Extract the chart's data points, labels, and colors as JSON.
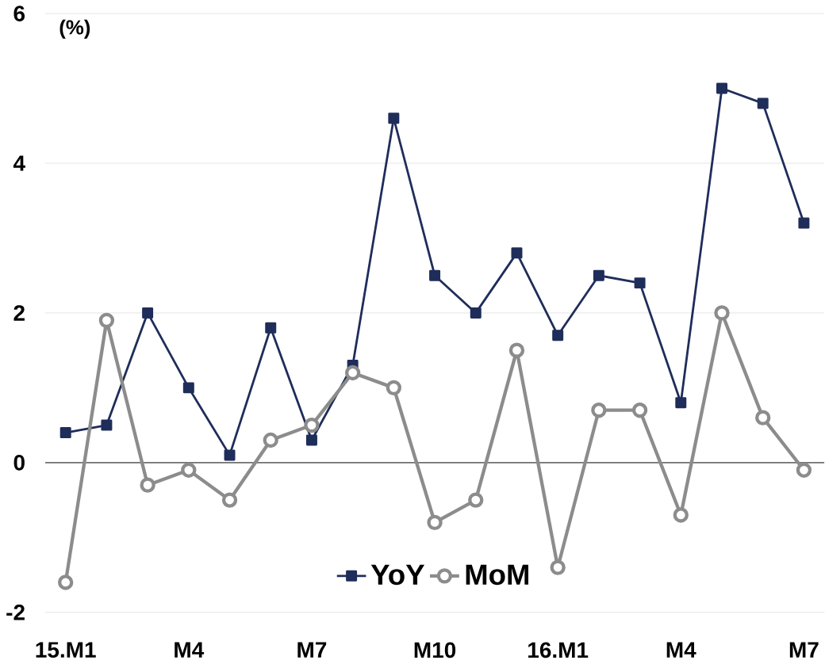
{
  "chart_data": {
    "type": "line",
    "ylabel": "(%)",
    "categories": [
      "15.M1",
      null,
      null,
      "M4",
      null,
      null,
      "M7",
      null,
      null,
      "M10",
      null,
      null,
      "16.M1",
      null,
      null,
      "M4",
      null,
      null,
      "M7"
    ],
    "series": [
      {
        "name": "YoY",
        "color": "#1f2d5a",
        "marker": "square",
        "values": [
          0.4,
          0.5,
          2.0,
          1.0,
          0.1,
          1.8,
          0.3,
          1.3,
          4.6,
          2.5,
          2.0,
          2.8,
          1.7,
          2.5,
          2.4,
          0.8,
          5.0,
          4.8,
          3.2
        ]
      },
      {
        "name": "MoM",
        "color": "#8c8c8c",
        "marker": "circle",
        "values": [
          -1.6,
          1.9,
          -0.3,
          -0.1,
          -0.5,
          0.3,
          0.5,
          1.2,
          1.0,
          -0.8,
          -0.5,
          1.5,
          -1.4,
          0.7,
          0.7,
          -0.7,
          2.0,
          0.6,
          -0.1
        ]
      }
    ],
    "ylim": [
      -2,
      6
    ],
    "yticks": [
      -2,
      0,
      2,
      4,
      6
    ],
    "grid": "y",
    "legend": "bottom",
    "ref_lines": [
      {
        "axis": "y",
        "value": 0,
        "color": "#707070"
      }
    ]
  }
}
